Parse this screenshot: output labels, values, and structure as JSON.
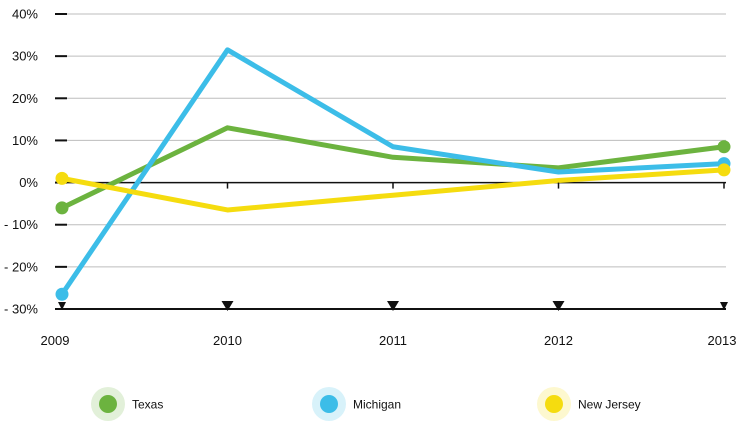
{
  "chart_data": {
    "type": "line",
    "title": "",
    "xlabel": "",
    "ylabel": "",
    "x": [
      "2009",
      "2010",
      "2011",
      "2012",
      "2013"
    ],
    "ylim": [
      -30,
      40
    ],
    "yticks": [
      40,
      30,
      20,
      10,
      0,
      -10,
      -20,
      -30
    ],
    "ytick_labels": [
      "40%",
      "30%",
      "20%",
      "10%",
      "0%",
      "- 10%",
      "- 20%",
      "- 30%"
    ],
    "grid": true,
    "legend_position": "bottom",
    "series": [
      {
        "name": "Texas",
        "color": "#6cb33f",
        "values": [
          -6,
          13,
          6,
          3.5,
          8.5
        ]
      },
      {
        "name": "Michigan",
        "color": "#3cbde8",
        "values": [
          -26.5,
          31.5,
          8.5,
          2.5,
          4.5
        ]
      },
      {
        "name": "New Jersey",
        "color": "#f5dc0f",
        "values": [
          1,
          -6.5,
          -3,
          0.5,
          3
        ]
      }
    ]
  }
}
